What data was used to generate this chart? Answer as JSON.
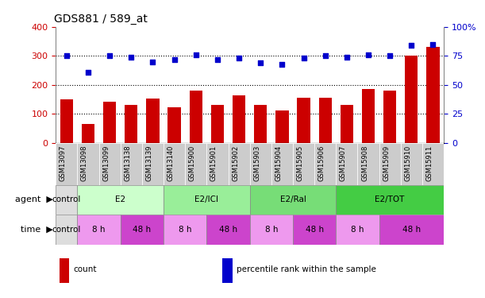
{
  "title": "GDS881 / 589_at",
  "categories": [
    "GSM13097",
    "GSM13098",
    "GSM13099",
    "GSM13138",
    "GSM13139",
    "GSM13140",
    "GSM15900",
    "GSM15901",
    "GSM15902",
    "GSM15903",
    "GSM15904",
    "GSM15905",
    "GSM15906",
    "GSM15907",
    "GSM15908",
    "GSM15909",
    "GSM15910",
    "GSM15911"
  ],
  "bar_values": [
    150,
    67,
    143,
    132,
    152,
    122,
    180,
    130,
    163,
    130,
    113,
    155,
    157,
    132,
    185,
    180,
    300,
    330
  ],
  "dot_values": [
    75,
    61,
    75,
    74,
    70,
    72,
    76,
    72,
    73,
    69,
    68,
    73,
    75,
    74,
    76,
    75,
    84,
    85
  ],
  "bar_color": "#cc0000",
  "dot_color": "#0000cc",
  "ylim_left": [
    0,
    400
  ],
  "ylim_right": [
    0,
    100
  ],
  "yticks_left": [
    0,
    100,
    200,
    300,
    400
  ],
  "yticks_right": [
    0,
    25,
    50,
    75,
    100
  ],
  "ytick_labels_right": [
    "0",
    "25",
    "50",
    "75",
    "100%"
  ],
  "hlines": [
    100,
    200,
    300
  ],
  "agent_groups": [
    {
      "label": "control",
      "start": 0,
      "end": 1,
      "color": "#dddddd"
    },
    {
      "label": "E2",
      "start": 1,
      "end": 5,
      "color": "#ccffcc"
    },
    {
      "label": "E2/ICI",
      "start": 5,
      "end": 9,
      "color": "#99ee99"
    },
    {
      "label": "E2/Ral",
      "start": 9,
      "end": 13,
      "color": "#77dd77"
    },
    {
      "label": "E2/TOT",
      "start": 13,
      "end": 18,
      "color": "#44cc44"
    }
  ],
  "time_groups": [
    {
      "label": "control",
      "start": 0,
      "end": 1,
      "color": "#dddddd"
    },
    {
      "label": "8 h",
      "start": 1,
      "end": 3,
      "color": "#ee99ee"
    },
    {
      "label": "48 h",
      "start": 3,
      "end": 5,
      "color": "#cc44cc"
    },
    {
      "label": "8 h",
      "start": 5,
      "end": 7,
      "color": "#ee99ee"
    },
    {
      "label": "48 h",
      "start": 7,
      "end": 9,
      "color": "#cc44cc"
    },
    {
      "label": "8 h",
      "start": 9,
      "end": 11,
      "color": "#ee99ee"
    },
    {
      "label": "48 h",
      "start": 11,
      "end": 13,
      "color": "#cc44cc"
    },
    {
      "label": "8 h",
      "start": 13,
      "end": 15,
      "color": "#ee99ee"
    },
    {
      "label": "48 h",
      "start": 15,
      "end": 18,
      "color": "#cc44cc"
    }
  ],
  "legend_items": [
    {
      "label": "count",
      "color": "#cc0000"
    },
    {
      "label": "percentile rank within the sample",
      "color": "#0000cc"
    }
  ]
}
